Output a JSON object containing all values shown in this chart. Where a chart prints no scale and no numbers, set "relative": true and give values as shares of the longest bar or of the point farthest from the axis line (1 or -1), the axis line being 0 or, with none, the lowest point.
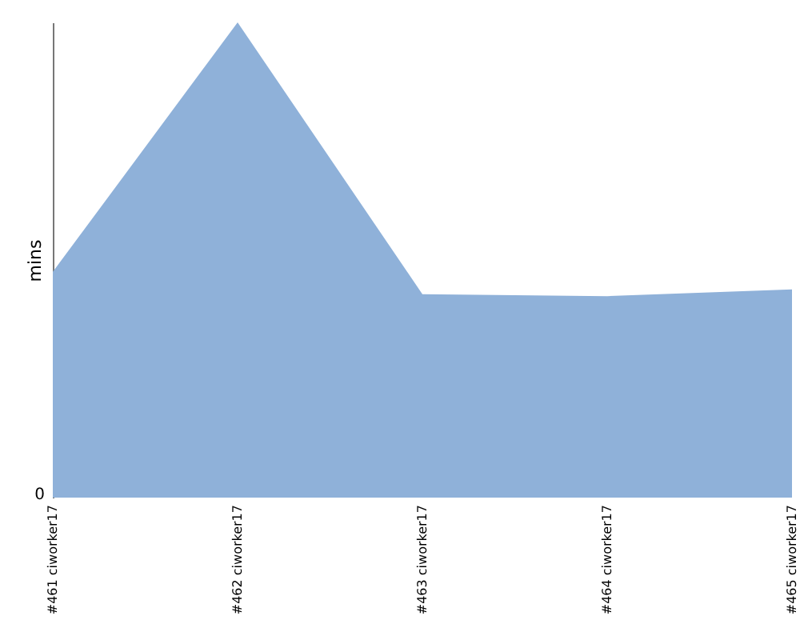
{
  "chart_data": {
    "type": "area",
    "ylabel": "mins",
    "relative": true,
    "annotations": [
      "0"
    ],
    "categories": [
      "#461 ciworker17",
      "#462 ciworker17",
      "#463 ciworker17",
      "#464 ciworker17",
      "#465 ciworker17"
    ],
    "series": [
      {
        "color": "#8fb1d9",
        "values": [
          0.475,
          1,
          0.428,
          0.424,
          0.438
        ]
      }
    ]
  }
}
